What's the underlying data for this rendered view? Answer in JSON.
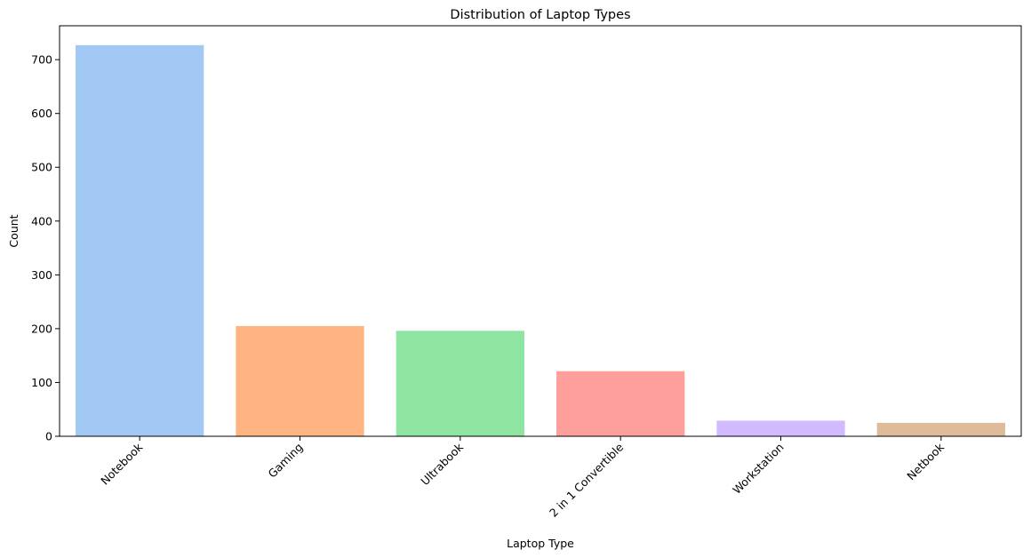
{
  "chart_data": {
    "type": "bar",
    "title": "Distribution of Laptop Types",
    "xlabel": "Laptop Type",
    "ylabel": "Count",
    "categories": [
      "Notebook",
      "Gaming",
      "Ultrabook",
      "2 in 1 Convertible",
      "Workstation",
      "Netbook"
    ],
    "values": [
      727,
      205,
      196,
      121,
      29,
      25
    ],
    "colors": [
      "#a1c9f4",
      "#ffb482",
      "#8de5a1",
      "#ff9f9b",
      "#d0bbff",
      "#debb9b"
    ],
    "ylim": [
      0,
      763
    ],
    "yticks": [
      0,
      100,
      200,
      300,
      400,
      500,
      600,
      700
    ],
    "grid": false,
    "legend": "none"
  }
}
